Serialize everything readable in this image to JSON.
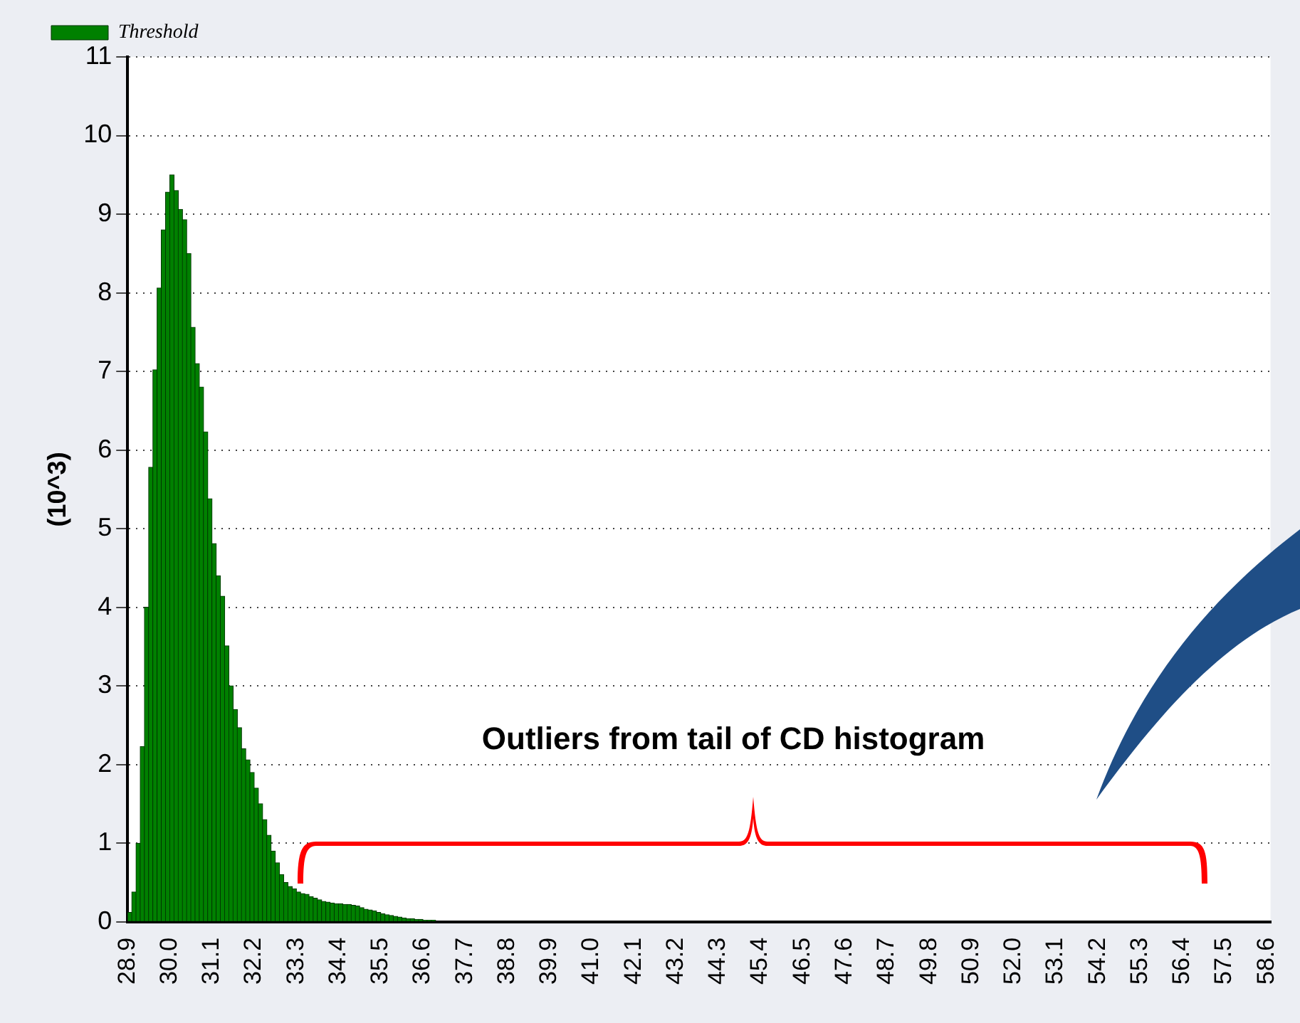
{
  "chart_data": {
    "type": "histogram",
    "ylabel": "(10^3)",
    "annotations": [
      "Outliers from tail of CD histogram"
    ],
    "bins": [
      28.9,
      29.01,
      29.12,
      29.23,
      29.34,
      29.45,
      29.56,
      29.67,
      29.78,
      29.89,
      30,
      30.11,
      30.22,
      30.33,
      30.44,
      30.55,
      30.66,
      30.77,
      30.88,
      30.99,
      31.1,
      31.21,
      31.32,
      31.43,
      31.54,
      31.65,
      31.76,
      31.87,
      31.98,
      32.09,
      32.2,
      32.31,
      32.42,
      32.53,
      32.64,
      32.75,
      32.86,
      32.97,
      33.08,
      33.19,
      33.3,
      33.41,
      33.52,
      33.63,
      33.74,
      33.85,
      33.96,
      34.07,
      34.18,
      34.29,
      34.4,
      34.51,
      34.62,
      34.73,
      34.84,
      34.95,
      35.06,
      35.17,
      35.28,
      35.39,
      35.5,
      35.61,
      35.72,
      35.83,
      35.94,
      36.05,
      36.16,
      36.27,
      36.38,
      36.49,
      36.6,
      36.71,
      36.82,
      36.93
    ],
    "series": [
      {
        "name": "Threshold",
        "color": "#008000",
        "values": [
          0.12,
          0.38,
          1.0,
          2.23,
          4.0,
          5.78,
          7.02,
          8.06,
          8.8,
          9.28,
          9.5,
          9.3,
          9.06,
          8.93,
          8.5,
          7.56,
          7.1,
          6.8,
          6.23,
          5.38,
          4.81,
          4.4,
          4.14,
          3.51,
          3.0,
          2.7,
          2.47,
          2.2,
          2.06,
          1.9,
          1.7,
          1.5,
          1.3,
          1.1,
          0.9,
          0.75,
          0.6,
          0.5,
          0.45,
          0.42,
          0.38,
          0.36,
          0.35,
          0.32,
          0.3,
          0.28,
          0.26,
          0.25,
          0.24,
          0.23,
          0.23,
          0.22,
          0.22,
          0.21,
          0.2,
          0.18,
          0.16,
          0.15,
          0.14,
          0.12,
          0.1,
          0.09,
          0.08,
          0.07,
          0.06,
          0.05,
          0.04,
          0.04,
          0.03,
          0.03,
          0.02,
          0.02,
          0.02
        ]
      }
    ],
    "xlim": [
      28.9,
      58.7
    ],
    "xticks": [
      28.9,
      {
        "value": 30,
        "label": "30.0"
      },
      31.1,
      32.2,
      33.3,
      34.4,
      35.5,
      36.6,
      37.7,
      38.8,
      39.9,
      {
        "value": 41,
        "label": "41.0"
      },
      42.1,
      43.2,
      44.3,
      45.4,
      46.5,
      47.6,
      48.7,
      49.8,
      50.9,
      {
        "value": 52,
        "label": "52.0"
      },
      53.1,
      54.2,
      55.3,
      56.4,
      57.5,
      58.6
    ],
    "ylim": [
      0,
      11
    ],
    "yticks": [
      0,
      1,
      2,
      3,
      4,
      5,
      6,
      7,
      8,
      9,
      10,
      11
    ],
    "grid": "y",
    "legend": "top left"
  }
}
